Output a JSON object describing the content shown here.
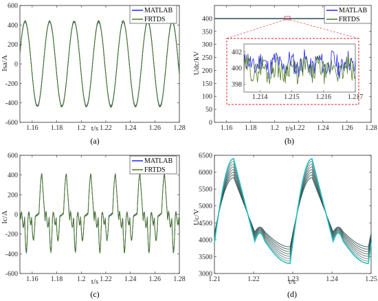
{
  "colors": {
    "matlab": "#1f1fff",
    "frtds": "#4a7a1f",
    "inset_box": "#e0202a",
    "ucv_light": "#1fbfbf",
    "ucv_dark": "#2f4f4f"
  },
  "chart_data": [
    {
      "id": "a",
      "type": "line",
      "panel_label": "(a)",
      "xlabel": "t/s",
      "ylabel": "Isa/A",
      "xlim": [
        1.15,
        1.28
      ],
      "ylim": [
        -600,
        600
      ],
      "xticks": [
        1.16,
        1.18,
        1.2,
        1.22,
        1.24,
        1.26,
        1.28
      ],
      "xtick_labels": [
        "1.16",
        "1.18",
        "1.2",
        "1.22",
        "1.24",
        "1.26",
        "1.28"
      ],
      "yticks": [
        -600,
        -400,
        -200,
        0,
        200,
        400,
        600
      ],
      "ytick_labels": [
        "-600",
        "-400",
        "-200",
        "0",
        "200",
        "400",
        "600"
      ],
      "series": [
        {
          "name": "MATLAB",
          "description": "sine, amplitude 430 A, period 0.02 s"
        },
        {
          "name": "FRTDS",
          "description": "sine, amplitude 440 A, period 0.02 s, small ripple"
        }
      ],
      "legend": "top-right"
    },
    {
      "id": "b",
      "type": "line",
      "panel_label": "(b)",
      "xlabel": "t/s",
      "ylabel": "Udc/kV",
      "xlim": [
        1.15,
        1.28
      ],
      "ylim": [
        0,
        450
      ],
      "xticks": [
        1.16,
        1.18,
        1.2,
        1.22,
        1.24,
        1.26,
        1.28
      ],
      "xtick_labels": [
        "1.16",
        "1.18",
        "1.2",
        "1.22",
        "1.24",
        "1.26",
        "1.28"
      ],
      "yticks": [
        0,
        50,
        100,
        150,
        200,
        250,
        300,
        350,
        400
      ],
      "ytick_labels": [
        "0",
        "50",
        "100",
        "150",
        "200",
        "250",
        "300",
        "350",
        "400"
      ],
      "series": [
        {
          "name": "MATLAB",
          "value": 400
        },
        {
          "name": "FRTDS",
          "value": 400
        }
      ],
      "legend": "top-right",
      "inset": {
        "xlim": [
          1.2135,
          1.217
        ],
        "ylim": [
          397,
          403
        ],
        "xticks": [
          1.214,
          1.215,
          1.216,
          1.217
        ],
        "xtick_labels": [
          "1.214",
          "1.215",
          "1.216",
          "1.217"
        ],
        "yticks": [
          398,
          400,
          402
        ],
        "ytick_labels": [
          "398",
          "400",
          "402"
        ]
      }
    },
    {
      "id": "c",
      "type": "line",
      "panel_label": "(c)",
      "xlabel": "t/s",
      "ylabel": "Ic/A",
      "xlim": [
        1.15,
        1.28
      ],
      "ylim": [
        -600,
        600
      ],
      "xticks": [
        1.16,
        1.18,
        1.2,
        1.22,
        1.24,
        1.26,
        1.28
      ],
      "xtick_labels": [
        "1.16",
        "1.18",
        "1.2",
        "1.22",
        "1.24",
        "1.26",
        "1.28"
      ],
      "yticks": [
        -600,
        -400,
        -200,
        0,
        200,
        400,
        600
      ],
      "ytick_labels": [
        "-600",
        "-400",
        "-200",
        "0",
        "200",
        "400",
        "600"
      ],
      "series": [
        {
          "name": "MATLAB",
          "description": "distorted periodic current, period 0.02 s, peak 410 A, trough -380 A"
        },
        {
          "name": "FRTDS",
          "description": "distorted periodic current, period 0.02 s, peak 410 A, trough -380 A"
        }
      ],
      "legend": "top-right"
    },
    {
      "id": "d",
      "type": "line",
      "panel_label": "(d)",
      "xlabel": "t/s",
      "ylabel": "Uc/V",
      "xlim": [
        1.21,
        1.25
      ],
      "ylim": [
        3000,
        6500
      ],
      "xticks": [
        1.21,
        1.22,
        1.23,
        1.24,
        1.25
      ],
      "xtick_labels": [
        "1.21",
        "1.22",
        "1.23",
        "1.24",
        "1.25"
      ],
      "yticks": [
        3000,
        3500,
        4000,
        4500,
        5000,
        5500,
        6000,
        6500
      ],
      "ytick_labels": [
        "3000",
        "3500",
        "4000",
        "4500",
        "5000",
        "5500",
        "6000",
        "6500"
      ],
      "series_description": "bundle of capacitor voltages, period 0.02 s, peaks about 6400 V, minima about 3300 V",
      "legend": "none"
    }
  ]
}
